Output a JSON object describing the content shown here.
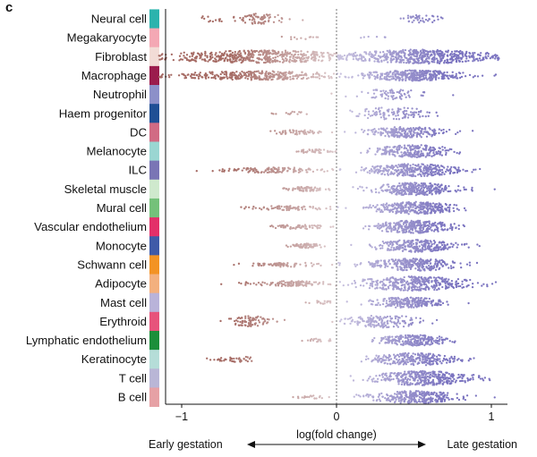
{
  "panel_label": "c",
  "chart_data": {
    "type": "scatter",
    "subtype": "beeswarm",
    "xlabel": "log(fold change)",
    "xlim": [
      -1.2,
      1.1
    ],
    "xticks": [
      -1,
      0,
      1
    ],
    "direction_left": "Early gestation",
    "direction_right": "Late gestation",
    "reference_line_x": 0,
    "colors": {
      "negative": "#a56a63",
      "positive": "#7b74c0"
    },
    "categories": [
      {
        "name": "Neural cell",
        "color": "#2bb3ad",
        "clusters": [
          {
            "center": -0.5,
            "spread": 0.2,
            "n": 70,
            "height": 12
          },
          {
            "center": 0.55,
            "spread": 0.14,
            "n": 40,
            "height": 10
          },
          {
            "center": -0.8,
            "spread": 0.1,
            "n": 12,
            "height": 8
          }
        ]
      },
      {
        "name": "Megakaryocyte",
        "color": "#f4a8b4",
        "clusters": [
          {
            "center": -0.25,
            "spread": 0.12,
            "n": 12,
            "height": 4
          },
          {
            "center": 0.25,
            "spread": 0.08,
            "n": 6,
            "height": 3
          }
        ]
      },
      {
        "name": "Fibroblast",
        "color": "#f2dcd6",
        "clusters": [
          {
            "center": -0.5,
            "spread": 0.7,
            "n": 500,
            "height": 14
          },
          {
            "center": 0.55,
            "spread": 0.5,
            "n": 500,
            "height": 16
          }
        ]
      },
      {
        "name": "Macrophage",
        "color": "#9b1c4d",
        "clusters": [
          {
            "center": -0.5,
            "spread": 0.6,
            "n": 350,
            "height": 10
          },
          {
            "center": 0.5,
            "spread": 0.35,
            "n": 350,
            "height": 12
          }
        ]
      },
      {
        "name": "Neutrophil",
        "color": "#8c90c9",
        "clusters": [
          {
            "center": 0.35,
            "spread": 0.25,
            "n": 70,
            "height": 12
          }
        ]
      },
      {
        "name": "Haem progenitor",
        "color": "#1f4f95",
        "clusters": [
          {
            "center": 0.35,
            "spread": 0.28,
            "n": 110,
            "height": 14
          },
          {
            "center": -0.3,
            "spread": 0.12,
            "n": 14,
            "height": 4
          }
        ]
      },
      {
        "name": "DC",
        "color": "#d16b84",
        "clusters": [
          {
            "center": 0.45,
            "spread": 0.3,
            "n": 220,
            "height": 12
          },
          {
            "center": -0.25,
            "spread": 0.2,
            "n": 50,
            "height": 5
          }
        ]
      },
      {
        "name": "Melanocyte",
        "color": "#9ad6d2",
        "clusters": [
          {
            "center": 0.5,
            "spread": 0.28,
            "n": 240,
            "height": 14
          },
          {
            "center": -0.15,
            "spread": 0.12,
            "n": 40,
            "height": 5
          }
        ]
      },
      {
        "name": "ILC",
        "color": "#7a75b5",
        "clusters": [
          {
            "center": 0.5,
            "spread": 0.33,
            "n": 320,
            "height": 14
          },
          {
            "center": -0.4,
            "spread": 0.4,
            "n": 120,
            "height": 6
          }
        ]
      },
      {
        "name": "Skeletal muscle",
        "color": "#cfe9cd",
        "clusters": [
          {
            "center": 0.5,
            "spread": 0.3,
            "n": 300,
            "height": 14
          },
          {
            "center": -0.2,
            "spread": 0.15,
            "n": 70,
            "height": 5
          }
        ]
      },
      {
        "name": "Mural cell",
        "color": "#74c17a",
        "clusters": [
          {
            "center": 0.5,
            "spread": 0.3,
            "n": 300,
            "height": 14
          },
          {
            "center": -0.3,
            "spread": 0.3,
            "n": 80,
            "height": 5
          }
        ]
      },
      {
        "name": "Vascular endothelium",
        "color": "#e32f69",
        "clusters": [
          {
            "center": 0.5,
            "spread": 0.3,
            "n": 300,
            "height": 14
          },
          {
            "center": -0.25,
            "spread": 0.2,
            "n": 60,
            "height": 5
          }
        ]
      },
      {
        "name": "Monocyte",
        "color": "#3f5aa8",
        "clusters": [
          {
            "center": 0.5,
            "spread": 0.3,
            "n": 280,
            "height": 14
          },
          {
            "center": -0.2,
            "spread": 0.15,
            "n": 60,
            "height": 5
          }
        ]
      },
      {
        "name": "Schwann cell",
        "color": "#f39324",
        "clusters": [
          {
            "center": 0.5,
            "spread": 0.32,
            "n": 300,
            "height": 14
          },
          {
            "center": -0.35,
            "spread": 0.3,
            "n": 70,
            "height": 5
          }
        ]
      },
      {
        "name": "Adipocyte",
        "color": "#f3b07e",
        "clusters": [
          {
            "center": 0.5,
            "spread": 0.4,
            "n": 340,
            "height": 16
          },
          {
            "center": -0.3,
            "spread": 0.35,
            "n": 110,
            "height": 6
          }
        ]
      },
      {
        "name": "Mast cell",
        "color": "#b9b3d9",
        "clusters": [
          {
            "center": 0.45,
            "spread": 0.25,
            "n": 220,
            "height": 12
          },
          {
            "center": -0.1,
            "spread": 0.1,
            "n": 20,
            "height": 4
          }
        ]
      },
      {
        "name": "Erythroid",
        "color": "#e7537b",
        "clusters": [
          {
            "center": 0.3,
            "spread": 0.3,
            "n": 160,
            "height": 14
          },
          {
            "center": -0.55,
            "spread": 0.15,
            "n": 80,
            "height": 12
          }
        ]
      },
      {
        "name": "Lymphatic endothelium",
        "color": "#1b8f3a",
        "clusters": [
          {
            "center": 0.5,
            "spread": 0.25,
            "n": 240,
            "height": 12
          },
          {
            "center": -0.1,
            "spread": 0.1,
            "n": 20,
            "height": 4
          }
        ]
      },
      {
        "name": "Keratinocyte",
        "color": "#b5ddd8",
        "clusters": [
          {
            "center": 0.5,
            "spread": 0.3,
            "n": 260,
            "height": 14
          },
          {
            "center": -0.65,
            "spread": 0.2,
            "n": 40,
            "height": 6
          }
        ]
      },
      {
        "name": "T cell",
        "color": "#b9b6d6",
        "clusters": [
          {
            "center": 0.55,
            "spread": 0.35,
            "n": 360,
            "height": 16
          }
        ]
      },
      {
        "name": "B cell",
        "color": "#e6a1a5",
        "clusters": [
          {
            "center": 0.5,
            "spread": 0.32,
            "n": 300,
            "height": 14
          },
          {
            "center": -0.15,
            "spread": 0.12,
            "n": 20,
            "height": 4
          }
        ]
      }
    ]
  }
}
